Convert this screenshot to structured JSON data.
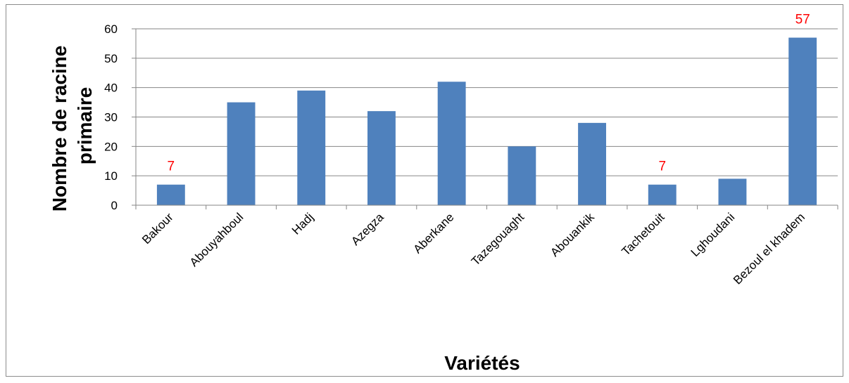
{
  "chart_data": {
    "type": "bar",
    "title": "",
    "xlabel": "Variétés",
    "ylabel_lines": [
      "Nombre de racine",
      "primaire"
    ],
    "categories": [
      "Bakour",
      "Abouyahboul",
      "Hadj",
      "Azegza",
      "Aberkane",
      "Tazegouaght",
      "Abouankik",
      "Tachetouit",
      "Lghoudani",
      "Bezoul el khadem"
    ],
    "series": [
      {
        "values": [
          7,
          35,
          39,
          32,
          42,
          20,
          28,
          7,
          9,
          57
        ]
      }
    ],
    "data_labels": [
      {
        "category": "Bakour",
        "text": "7"
      },
      {
        "category": "Tachetouit",
        "text": "7"
      },
      {
        "category": "Bezoul el khadem",
        "text": "57"
      }
    ],
    "ylim": [
      0,
      60
    ],
    "yticks": [
      0,
      10,
      20,
      30,
      40,
      50,
      60
    ],
    "grid": true,
    "legend": "none",
    "colors": {
      "bar": "#4f81bd",
      "data_label": "#ff0000",
      "grid": "#868686",
      "axis": "#868686"
    }
  }
}
